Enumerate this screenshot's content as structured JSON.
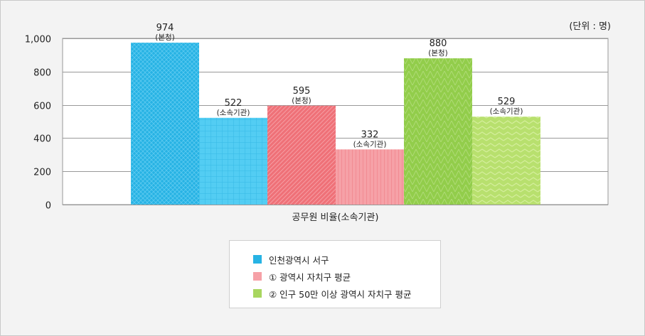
{
  "unit_label": "(단위 : 명)",
  "colors": {
    "series_0_dark": "#27b3e4",
    "series_0_light": "#53cdf3",
    "series_1_dark": "#ef7178",
    "series_1_light": "#f6a1a7",
    "series_2_dark": "#92cd4b",
    "series_2_light": "#b8e06e",
    "grid": "#999999",
    "plot_bg": "#ffffff"
  },
  "chart_data": {
    "type": "bar",
    "categories": [
      "공무원 비율(소속기관)"
    ],
    "ylim": [
      0,
      1000
    ],
    "yticks": [
      0,
      200,
      400,
      600,
      800,
      1000
    ],
    "ytick_labels": [
      "0",
      "200",
      "400",
      "600",
      "800",
      "1,000"
    ],
    "grid": true,
    "legend_position": "bottom",
    "series": [
      {
        "name": "인천광역시 서구",
        "bars": [
          {
            "value": 974,
            "value_label": "974",
            "sub_label": "(본청)"
          },
          {
            "value": 522,
            "value_label": "522",
            "sub_label": "(소속기관)"
          }
        ]
      },
      {
        "name": "① 광역시 자치구 평균",
        "bars": [
          {
            "value": 595,
            "value_label": "595",
            "sub_label": "(본청)"
          },
          {
            "value": 332,
            "value_label": "332",
            "sub_label": "(소속기관)"
          }
        ]
      },
      {
        "name": "② 인구 50만 이상 광역시 자치구 평균",
        "bars": [
          {
            "value": 880,
            "value_label": "880",
            "sub_label": "(본청)"
          },
          {
            "value": 529,
            "value_label": "529",
            "sub_label": "(소속기관)"
          }
        ]
      }
    ]
  }
}
